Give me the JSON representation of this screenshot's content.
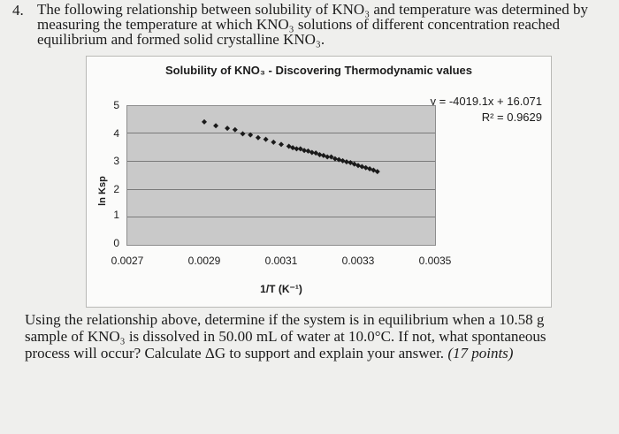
{
  "question": {
    "number": "4.",
    "lines": [
      "The following relationship between solubility of KNO₃ and temperature was determined by",
      "measuring the temperature at which KNO₃ solutions of different concentration reached",
      "equilibrium and formed solid crystalline KNO₃."
    ],
    "followup_lines": [
      "Using the relationship above, determine if the system is in equilibrium when a 10.58 g",
      "sample of KNO₃ is dissolved in 50.00 mL of water at 10.0°C. If not, what spontaneous",
      "process will occur? Calculate ΔG to support and explain your answer."
    ],
    "points": "(17 points)"
  },
  "chart_data": {
    "type": "scatter",
    "title": "Solubility of KNO₃ - Discovering Thermodynamic values",
    "xlabel": "1/T (K⁻¹)",
    "ylabel": "ln Ksp",
    "xlim": [
      0.0027,
      0.0035
    ],
    "ylim": [
      0,
      5
    ],
    "xticks": [
      "0.0027",
      "0.0029",
      "0.0031",
      "0.0033",
      "0.0035"
    ],
    "yticks": [
      "0",
      "1",
      "2",
      "3",
      "4",
      "5"
    ],
    "trendline": {
      "equation": "y = -4019.1x + 16.071",
      "r_squared": "R² = 0.9629",
      "slope": -4019.1,
      "intercept": 16.071
    },
    "grid": true,
    "series": [
      {
        "x": [
          0.0029,
          0.00293,
          0.00296,
          0.00298,
          0.003,
          0.00302,
          0.00304,
          0.00306,
          0.00308,
          0.0031,
          0.00312,
          0.00313,
          0.00314,
          0.00315,
          0.00316,
          0.00317,
          0.00318,
          0.00319,
          0.0032,
          0.00321,
          0.00322,
          0.00323,
          0.00324,
          0.00325,
          0.00326,
          0.00327,
          0.00328,
          0.00329,
          0.0033,
          0.00331,
          0.00332,
          0.00333,
          0.00334,
          0.00335
        ],
        "y": [
          4.43,
          4.29,
          4.2,
          4.15,
          4.0,
          3.96,
          3.86,
          3.8,
          3.7,
          3.62,
          3.55,
          3.5,
          3.46,
          3.46,
          3.4,
          3.38,
          3.33,
          3.31,
          3.25,
          3.22,
          3.17,
          3.17,
          3.1,
          3.07,
          3.03,
          2.99,
          2.96,
          2.91,
          2.86,
          2.82,
          2.78,
          2.74,
          2.69,
          2.64
        ],
        "color": "#1a1a1a"
      }
    ]
  }
}
